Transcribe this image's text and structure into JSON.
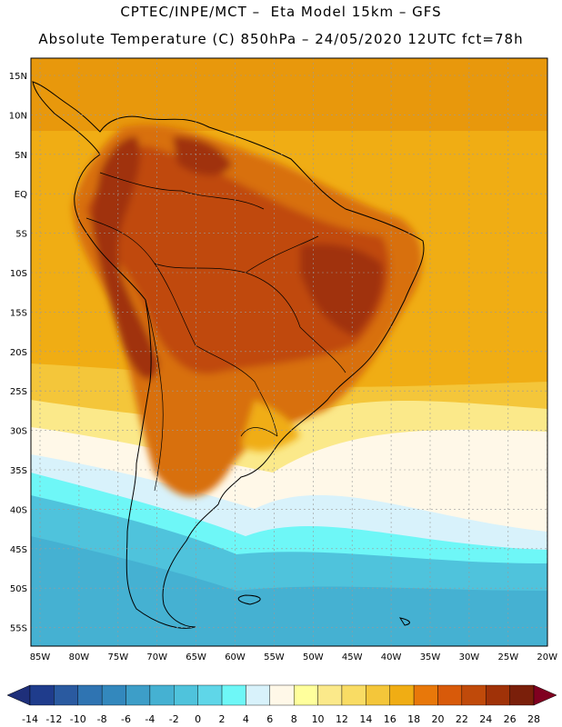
{
  "header": {
    "title_line1": "CPTEC/INPE/MCT –  Eta Model 15km – GFS",
    "title_line2": "Absolute Temperature (C) 850hPa – 24/05/2020 12UTC fct=78h"
  },
  "map": {
    "lat_labels": [
      "15N",
      "10N",
      "5N",
      "EQ",
      "5S",
      "10S",
      "15S",
      "20S",
      "25S",
      "30S",
      "35S",
      "40S",
      "45S",
      "50S",
      "55S"
    ],
    "lon_labels": [
      "85W",
      "80W",
      "75W",
      "70W",
      "65W",
      "60W",
      "55W",
      "50W",
      "45W",
      "40W",
      "35W",
      "30W",
      "25W",
      "20W"
    ]
  },
  "colorbar": {
    "tick_labels": [
      "-14",
      "-12",
      "-10",
      "-8",
      "-6",
      "-4",
      "-2",
      "0",
      "2",
      "4",
      "6",
      "8",
      "10",
      "12",
      "14",
      "16",
      "18",
      "20",
      "22",
      "24",
      "26",
      "28"
    ],
    "colors": [
      "#1f3c8c",
      "#2a5aa0",
      "#2f74b2",
      "#3388bd",
      "#3d9ec8",
      "#45b1d2",
      "#4fc3dc",
      "#5fd6e8",
      "#6ef7f7",
      "#d8f2fb",
      "#fff8e8",
      "#ffff9c",
      "#fbe98a",
      "#f9dc64",
      "#f4c63a",
      "#f0ad14",
      "#e8780a",
      "#d85a0a",
      "#c04a0a",
      "#a03208",
      "#7a1f0a"
    ],
    "under_color": "#1e2f7a",
    "over_color": "#800020"
  }
}
